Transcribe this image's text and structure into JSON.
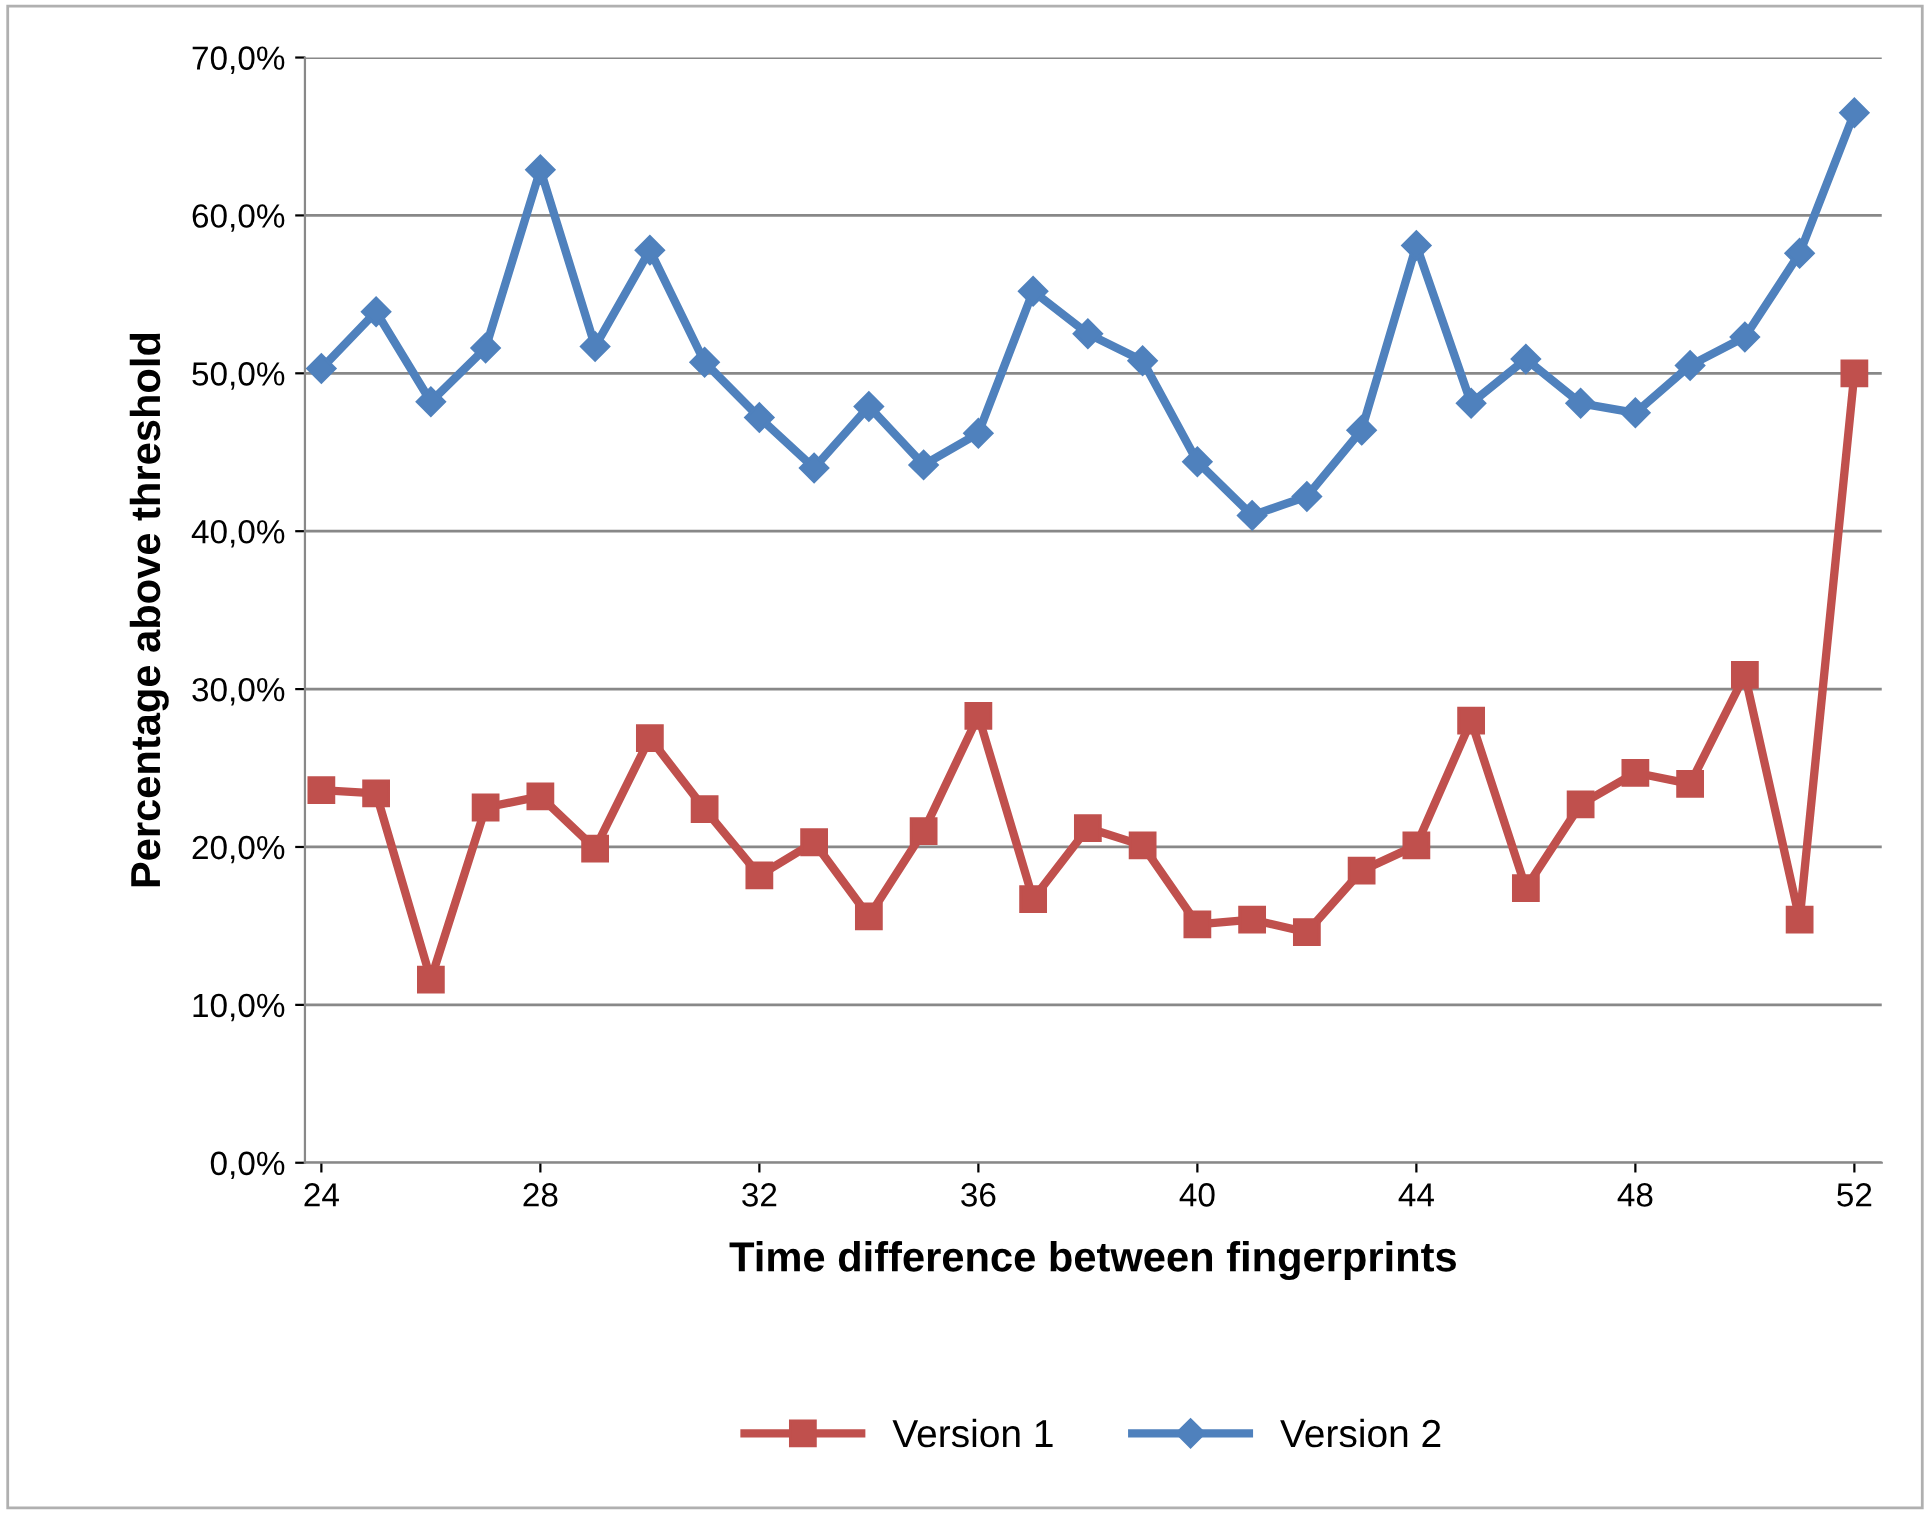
{
  "chart_data": {
    "type": "line",
    "xlabel": "Time difference between fingerprints",
    "ylabel": "Percentage above threshold",
    "x": [
      24,
      25,
      26,
      27,
      28,
      29,
      30,
      31,
      32,
      33,
      34,
      35,
      36,
      37,
      38,
      39,
      40,
      41,
      42,
      43,
      44,
      45,
      46,
      47,
      48,
      49,
      50,
      51,
      52
    ],
    "series": [
      {
        "name": "Version 1",
        "color": "#c0504d",
        "marker": "square",
        "values": [
          23.6,
          23.4,
          11.6,
          22.5,
          23.2,
          19.9,
          26.9,
          22.4,
          18.2,
          20.3,
          15.6,
          21.0,
          28.3,
          16.7,
          21.2,
          20.1,
          15.1,
          15.4,
          14.6,
          18.5,
          20.1,
          28.0,
          17.4,
          22.7,
          24.7,
          24.0,
          30.9,
          15.4,
          50.0
        ]
      },
      {
        "name": "Version 2",
        "color": "#4f81bd",
        "marker": "diamond",
        "values": [
          50.3,
          53.9,
          48.2,
          51.6,
          62.9,
          51.7,
          57.8,
          50.7,
          47.2,
          44.0,
          47.9,
          44.2,
          46.2,
          55.2,
          52.5,
          50.8,
          44.4,
          41.0,
          42.2,
          46.4,
          58.1,
          48.1,
          50.9,
          48.1,
          47.5,
          50.5,
          52.3,
          57.6,
          66.5
        ]
      }
    ],
    "xlim": [
      23.7,
      52.5
    ],
    "xticks": [
      24,
      28,
      32,
      36,
      40,
      44,
      48,
      52
    ],
    "ylim": [
      0,
      70
    ],
    "yticks": [
      {
        "value": 0,
        "label": "0,0%"
      },
      {
        "value": 10,
        "label": "10,0%"
      },
      {
        "value": 20,
        "label": "20,0%"
      },
      {
        "value": 30,
        "label": "30,0%"
      },
      {
        "value": 40,
        "label": "40,0%"
      },
      {
        "value": 50,
        "label": "50,0%"
      },
      {
        "value": 60,
        "label": "60,0%"
      },
      {
        "value": 70,
        "label": "70,0%"
      }
    ],
    "grid": "y",
    "legend": "bottom",
    "line_style": "solid"
  }
}
